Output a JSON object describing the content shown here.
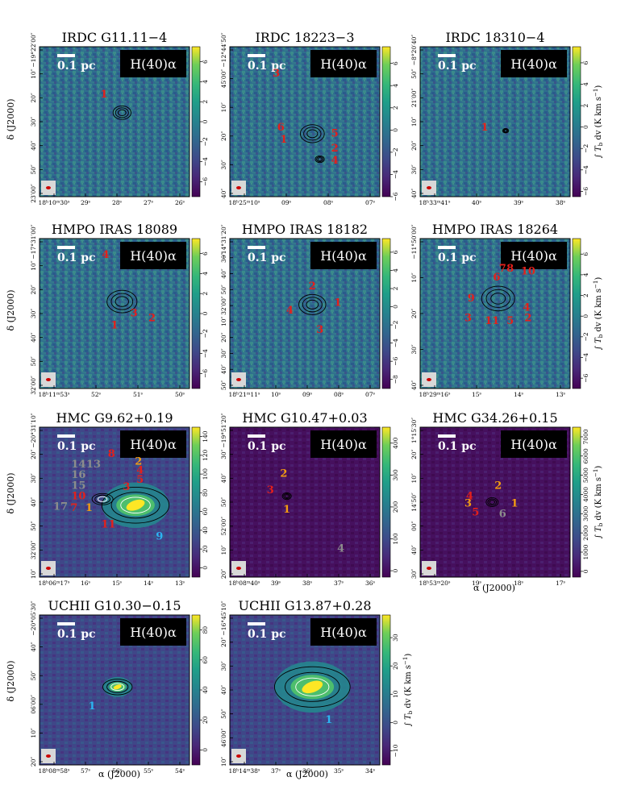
{
  "chart_data": {
    "type": "heatmap",
    "figure": "H(40)alpha integrated intensity maps for a sample of massive star-forming regions",
    "line_label": "H(40)α",
    "scalebar_label": "0.1 pc",
    "ylabel": "δ (J2000)",
    "xlabel": "α (J2000)",
    "colorbar_label": "∫ T_b dv (K km s⁻¹)",
    "colorbar_label_parts": {
      "int": "∫",
      "t": "T",
      "sub": "b",
      "dv": "dv (K km s",
      "exp": "−1",
      "close": ")"
    },
    "colors": {
      "low": "#440154",
      "mid": "#21918c",
      "high": "#fde725",
      "contour": "#000000",
      "label_red": "#e3201c",
      "label_orange": "#f39c12",
      "label_gray": "#8c8c8c",
      "label_cyan": "#2bb5f2"
    },
    "panels": [
      {
        "title": "IRDC G11.11−4",
        "category": "IRDC",
        "cbar_ticks": [
          "6",
          "4",
          "2",
          "0",
          "−2",
          "−4",
          "−6"
        ],
        "cbar_range": [
          -7.5,
          7.5
        ],
        "x_ticks": [
          "18ʰ10ᵐ30ˢ",
          "29ˢ",
          "28ˢ",
          "27ˢ",
          "26ˢ"
        ],
        "y_ticks": [
          "−19°22′00″",
          "10″",
          "20″",
          "30″",
          "40″",
          "50″",
          "23′00″"
        ],
        "labels": [
          {
            "t": "1",
            "c": "red",
            "x": 0.43,
            "y": 0.34
          }
        ],
        "blobs": [
          {
            "x": 0.55,
            "y": 0.44,
            "r": 0.06
          }
        ],
        "bright": 0.0
      },
      {
        "title": "IRDC 18223−3",
        "category": "IRDC",
        "cbar_ticks": [
          "6",
          "4",
          "2",
          "0",
          "−2",
          "−4",
          "−6"
        ],
        "cbar_range": [
          -6,
          7.5
        ],
        "x_ticks": [
          "18ʰ25ᵐ10ˢ",
          "09ˢ",
          "08ˢ",
          "07ˢ"
        ],
        "y_ticks": [
          "−12°44′50″",
          "45′00″",
          "10″",
          "20″",
          "30″",
          "40″"
        ],
        "labels": [
          {
            "t": "3",
            "c": "red",
            "x": 0.31,
            "y": 0.2
          },
          {
            "t": "6",
            "c": "red",
            "x": 0.34,
            "y": 0.56
          },
          {
            "t": "1",
            "c": "red",
            "x": 0.36,
            "y": 0.64
          },
          {
            "t": "5",
            "c": "red",
            "x": 0.7,
            "y": 0.6
          },
          {
            "t": "2",
            "c": "red",
            "x": 0.7,
            "y": 0.7
          },
          {
            "t": "4",
            "c": "red",
            "x": 0.7,
            "y": 0.78
          }
        ],
        "blobs": [
          {
            "x": 0.55,
            "y": 0.58,
            "r": 0.08
          },
          {
            "x": 0.6,
            "y": 0.75,
            "r": 0.03
          }
        ],
        "bright": 0.0
      },
      {
        "title": "IRDC 18310−4",
        "category": "IRDC",
        "cbar_ticks": [
          "6",
          "4",
          "2",
          "0",
          "−2",
          "−4",
          "−6"
        ],
        "cbar_range": [
          -6.5,
          7.5
        ],
        "x_ticks": [
          "18ʰ33ᵐ41ˢ",
          "40ˢ",
          "39ˢ",
          "38ˢ"
        ],
        "y_ticks": [
          "−8°20′40″",
          "50″",
          "21′00″",
          "10″",
          "20″",
          "30″",
          "40″"
        ],
        "labels": [
          {
            "t": "1",
            "c": "red",
            "x": 0.43,
            "y": 0.56
          }
        ],
        "blobs": [
          {
            "x": 0.57,
            "y": 0.56,
            "r": 0.02
          }
        ],
        "bright": 0.0
      },
      {
        "title": "HMPO IRAS 18089",
        "category": "HMPO",
        "cbar_ticks": [
          "6",
          "4",
          "2",
          "0",
          "−2",
          "−4",
          "−6"
        ],
        "cbar_range": [
          -7.5,
          7.5
        ],
        "x_ticks": [
          "18ʰ11ᵐ53ˢ",
          "52ˢ",
          "51ˢ",
          "50ˢ"
        ],
        "y_ticks": [
          "−17°31′00″",
          "10″",
          "20″",
          "30″",
          "40″",
          "50″",
          "32′00″"
        ],
        "labels": [
          {
            "t": "4",
            "c": "red",
            "x": 0.44,
            "y": 0.13
          },
          {
            "t": "3",
            "c": "red",
            "x": 0.63,
            "y": 0.52
          },
          {
            "t": "2",
            "c": "red",
            "x": 0.75,
            "y": 0.55
          },
          {
            "t": "1",
            "c": "red",
            "x": 0.5,
            "y": 0.6
          }
        ],
        "blobs": [
          {
            "x": 0.55,
            "y": 0.42,
            "r": 0.1
          }
        ],
        "bright": 0.0
      },
      {
        "title": "HMPO IRAS 18182",
        "category": "HMPO",
        "cbar_ticks": [
          "6",
          "4",
          "2",
          "0",
          "−2",
          "−4",
          "−6",
          "−8"
        ],
        "cbar_range": [
          -9,
          7.5
        ],
        "x_ticks": [
          "18ʰ21ᵐ11ˢ",
          "10ˢ",
          "09ˢ",
          "08ˢ",
          "07ˢ"
        ],
        "y_ticks": [
          "−14°31′20″",
          "30″",
          "40″",
          "50″",
          "32′00″",
          "10″",
          "20″",
          "30″",
          "40″",
          "50″"
        ],
        "labels": [
          {
            "t": "2",
            "c": "red",
            "x": 0.55,
            "y": 0.34
          },
          {
            "t": "1",
            "c": "red",
            "x": 0.72,
            "y": 0.45
          },
          {
            "t": "4",
            "c": "red",
            "x": 0.4,
            "y": 0.5
          },
          {
            "t": "3",
            "c": "red",
            "x": 0.6,
            "y": 0.63
          }
        ],
        "blobs": [
          {
            "x": 0.55,
            "y": 0.44,
            "r": 0.09
          }
        ],
        "bright": 0.0
      },
      {
        "title": "HMPO IRAS 18264",
        "category": "HMPO",
        "cbar_ticks": [
          "6",
          "4",
          "2",
          "0",
          "−2",
          "−4",
          "−6"
        ],
        "cbar_range": [
          -7,
          7.5
        ],
        "x_ticks": [
          "18ʰ29ᵐ16ˢ",
          "15ˢ",
          "14ˢ",
          "13ˢ"
        ],
        "y_ticks": [
          "−11°50′00″",
          "10″",
          "20″",
          "30″",
          "40″"
        ],
        "labels": [
          {
            "t": "7",
            "c": "red",
            "x": 0.55,
            "y": 0.22
          },
          {
            "t": "8",
            "c": "red",
            "x": 0.6,
            "y": 0.22
          },
          {
            "t": "10",
            "c": "red",
            "x": 0.72,
            "y": 0.24
          },
          {
            "t": "6",
            "c": "red",
            "x": 0.51,
            "y": 0.28
          },
          {
            "t": "9",
            "c": "red",
            "x": 0.34,
            "y": 0.42
          },
          {
            "t": "4",
            "c": "red",
            "x": 0.71,
            "y": 0.48
          },
          {
            "t": "2",
            "c": "red",
            "x": 0.72,
            "y": 0.55
          },
          {
            "t": "3",
            "c": "red",
            "x": 0.32,
            "y": 0.55
          },
          {
            "t": "11",
            "c": "red",
            "x": 0.48,
            "y": 0.57
          },
          {
            "t": "5",
            "c": "red",
            "x": 0.6,
            "y": 0.57
          }
        ],
        "blobs": [
          {
            "x": 0.52,
            "y": 0.4,
            "r": 0.11
          }
        ],
        "bright": 0.0
      },
      {
        "title": "HMC G9.62+0.19",
        "category": "HMC",
        "cbar_ticks": [
          "140",
          "120",
          "100",
          "80",
          "60",
          "40",
          "20",
          "0"
        ],
        "cbar_range": [
          -10,
          150
        ],
        "x_ticks": [
          "18ʰ06ᵐ17ˢ",
          "16ˢ",
          "15ˢ",
          "14ˢ",
          "13ˢ"
        ],
        "y_ticks": [
          "−20°31′10″",
          "20″",
          "30″",
          "40″",
          "50″",
          "32′00″",
          "10″"
        ],
        "labels": [
          {
            "t": "14",
            "c": "gray",
            "x": 0.26,
            "y": 0.27
          },
          {
            "t": "13",
            "c": "gray",
            "x": 0.36,
            "y": 0.27
          },
          {
            "t": "16",
            "c": "gray",
            "x": 0.26,
            "y": 0.34
          },
          {
            "t": "15",
            "c": "gray",
            "x": 0.26,
            "y": 0.41
          },
          {
            "t": "10",
            "c": "red",
            "x": 0.26,
            "y": 0.48
          },
          {
            "t": "17",
            "c": "gray",
            "x": 0.14,
            "y": 0.55
          },
          {
            "t": "7",
            "c": "red",
            "x": 0.23,
            "y": 0.56
          },
          {
            "t": "1",
            "c": "orange",
            "x": 0.33,
            "y": 0.56
          },
          {
            "t": "8",
            "c": "red",
            "x": 0.48,
            "y": 0.2
          },
          {
            "t": "2",
            "c": "orange",
            "x": 0.66,
            "y": 0.25
          },
          {
            "t": "4",
            "c": "red",
            "x": 0.67,
            "y": 0.31
          },
          {
            "t": "5",
            "c": "red",
            "x": 0.67,
            "y": 0.37
          },
          {
            "t": "3",
            "c": "red",
            "x": 0.58,
            "y": 0.42
          },
          {
            "t": "11",
            "c": "red",
            "x": 0.46,
            "y": 0.67
          },
          {
            "t": "9",
            "c": "cyan",
            "x": 0.8,
            "y": 0.75
          }
        ],
        "blobs": [
          {
            "x": 0.64,
            "y": 0.52,
            "r": 0.16
          },
          {
            "x": 0.42,
            "y": 0.48,
            "r": 0.05
          }
        ],
        "bright": 0.25
      },
      {
        "title": "HMC G10.47+0.03",
        "category": "HMC",
        "cbar_ticks": [
          "400",
          "300",
          "200",
          "100",
          "0"
        ],
        "cbar_range": [
          -20,
          450
        ],
        "x_ticks": [
          "18ʰ08ᵐ40ˢ",
          "39ˢ",
          "38ˢ",
          "37ˢ",
          "36ˢ"
        ],
        "y_ticks": [
          "−19°51′20″",
          "30″",
          "40″",
          "50″",
          "52′00″",
          "10″",
          "20″"
        ],
        "labels": [
          {
            "t": "2",
            "c": "orange",
            "x": 0.36,
            "y": 0.33
          },
          {
            "t": "3",
            "c": "red",
            "x": 0.27,
            "y": 0.44
          },
          {
            "t": "1",
            "c": "orange",
            "x": 0.38,
            "y": 0.57
          },
          {
            "t": "4",
            "c": "gray",
            "x": 0.74,
            "y": 0.83
          }
        ],
        "blobs": [
          {
            "x": 0.38,
            "y": 0.46,
            "r": 0.03
          }
        ],
        "bright": 0.0
      },
      {
        "title": "HMC G34.26+0.15",
        "category": "HMC",
        "cbar_ticks": [
          "7000",
          "6000",
          "5000",
          "4000",
          "3000",
          "2000",
          "1000",
          "0"
        ],
        "cbar_range": [
          -300,
          7500
        ],
        "x_ticks": [
          "18ʰ53ᵐ20ˢ",
          "19ˢ",
          "18ˢ",
          "17ˢ"
        ],
        "y_ticks": [
          "1°15′30″",
          "20″",
          "10″",
          "14′50″",
          "00″",
          "40″",
          "30″"
        ],
        "labels": [
          {
            "t": "2",
            "c": "orange",
            "x": 0.52,
            "y": 0.41
          },
          {
            "t": "4",
            "c": "red",
            "x": 0.33,
            "y": 0.48
          },
          {
            "t": "3",
            "c": "orange",
            "x": 0.32,
            "y": 0.53
          },
          {
            "t": "1",
            "c": "orange",
            "x": 0.63,
            "y": 0.53
          },
          {
            "t": "5",
            "c": "red",
            "x": 0.37,
            "y": 0.59
          },
          {
            "t": "6",
            "c": "gray",
            "x": 0.55,
            "y": 0.6
          }
        ],
        "blobs": [
          {
            "x": 0.48,
            "y": 0.5,
            "r": 0.04
          }
        ],
        "bright": 0.0
      },
      {
        "title": "UCHII G10.30−0.15",
        "category": "UCHII",
        "cbar_ticks": [
          "80",
          "60",
          "40",
          "20",
          "0"
        ],
        "cbar_range": [
          -10,
          90
        ],
        "x_ticks": [
          "18ʰ08ᵐ58ˢ",
          "57ˢ",
          "56ˢ",
          "55ˢ",
          "54ˢ"
        ],
        "y_ticks": [
          "−20°05′30″",
          "40″",
          "50″",
          "06′00″",
          "10″",
          "20″"
        ],
        "labels": [
          {
            "t": "1",
            "c": "cyan",
            "x": 0.35,
            "y": 0.63
          }
        ],
        "blobs": [
          {
            "x": 0.52,
            "y": 0.48,
            "r": 0.07
          }
        ],
        "bright": 0.7
      },
      {
        "title": "UCHII G13.87+0.28",
        "category": "UCHII",
        "cbar_ticks": [
          "30",
          "20",
          "10",
          "0",
          "−10"
        ],
        "cbar_range": [
          -15,
          38
        ],
        "x_ticks": [
          "18ʰ14ᵐ38ˢ",
          "37ˢ",
          "36ˢ",
          "35ˢ",
          "34ˢ"
        ],
        "y_ticks": [
          "−16°45′10″",
          "20″",
          "30″",
          "40″",
          "50″",
          "46′00″",
          "10″"
        ],
        "labels": [
          {
            "t": "1",
            "c": "cyan",
            "x": 0.66,
            "y": 0.72
          }
        ],
        "blobs": [
          {
            "x": 0.55,
            "y": 0.48,
            "r": 0.18
          }
        ],
        "bright": 0.55
      }
    ]
  }
}
